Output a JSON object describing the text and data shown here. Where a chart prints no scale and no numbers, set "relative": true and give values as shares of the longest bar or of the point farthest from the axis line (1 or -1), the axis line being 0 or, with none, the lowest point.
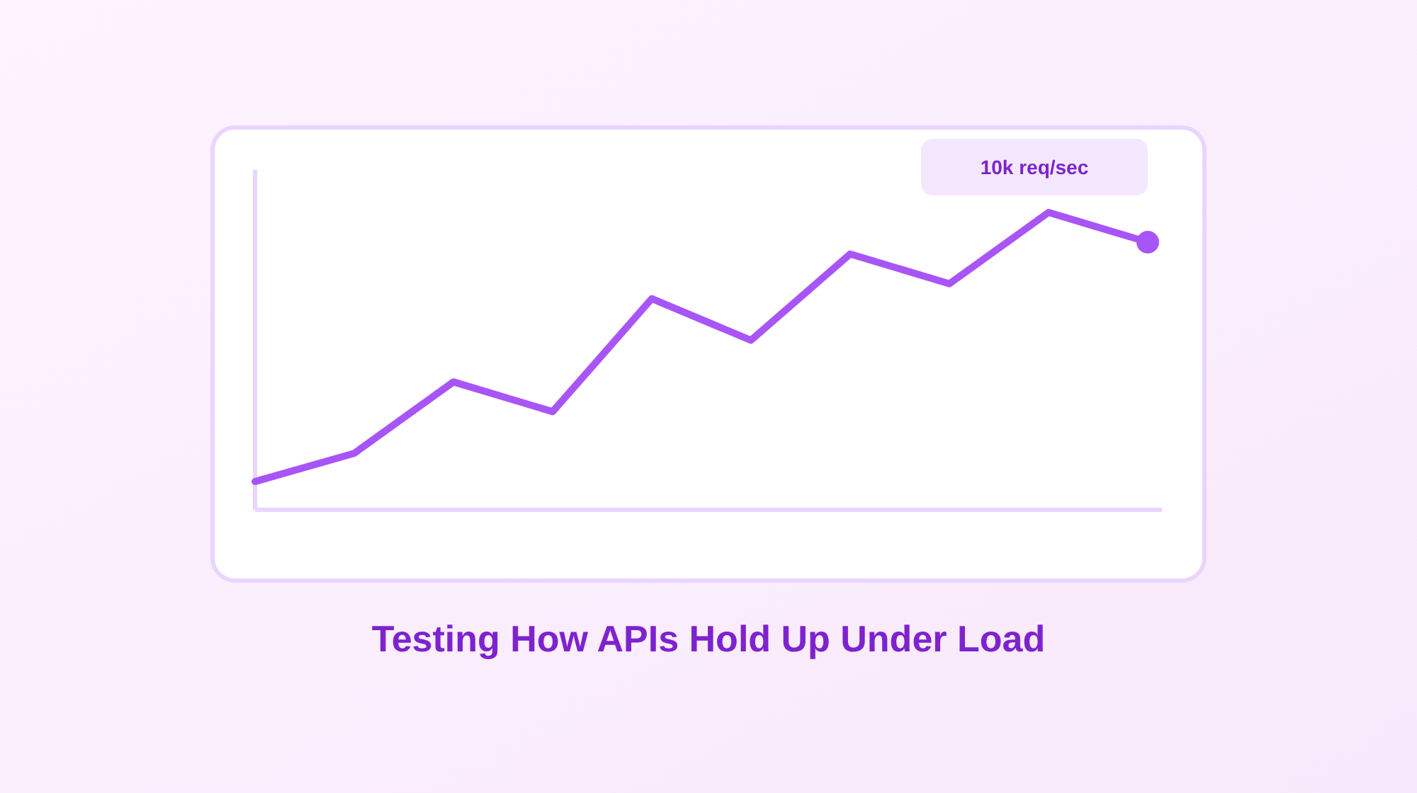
{
  "chart_data": {
    "type": "line",
    "title": "Testing How APIs Hold Up Under Load",
    "annotations": [
      "10k req/sec"
    ],
    "categories": [
      null,
      null,
      null,
      null,
      null,
      null,
      null,
      null,
      null,
      null
    ],
    "relative": true,
    "series": [
      {
        "color": "#a855f7",
        "values": [
          0.095,
          0.19,
          0.43,
          0.33,
          0.71,
          0.57,
          0.86,
          0.76,
          1,
          0.9
        ]
      }
    ],
    "grid": false
  }
}
